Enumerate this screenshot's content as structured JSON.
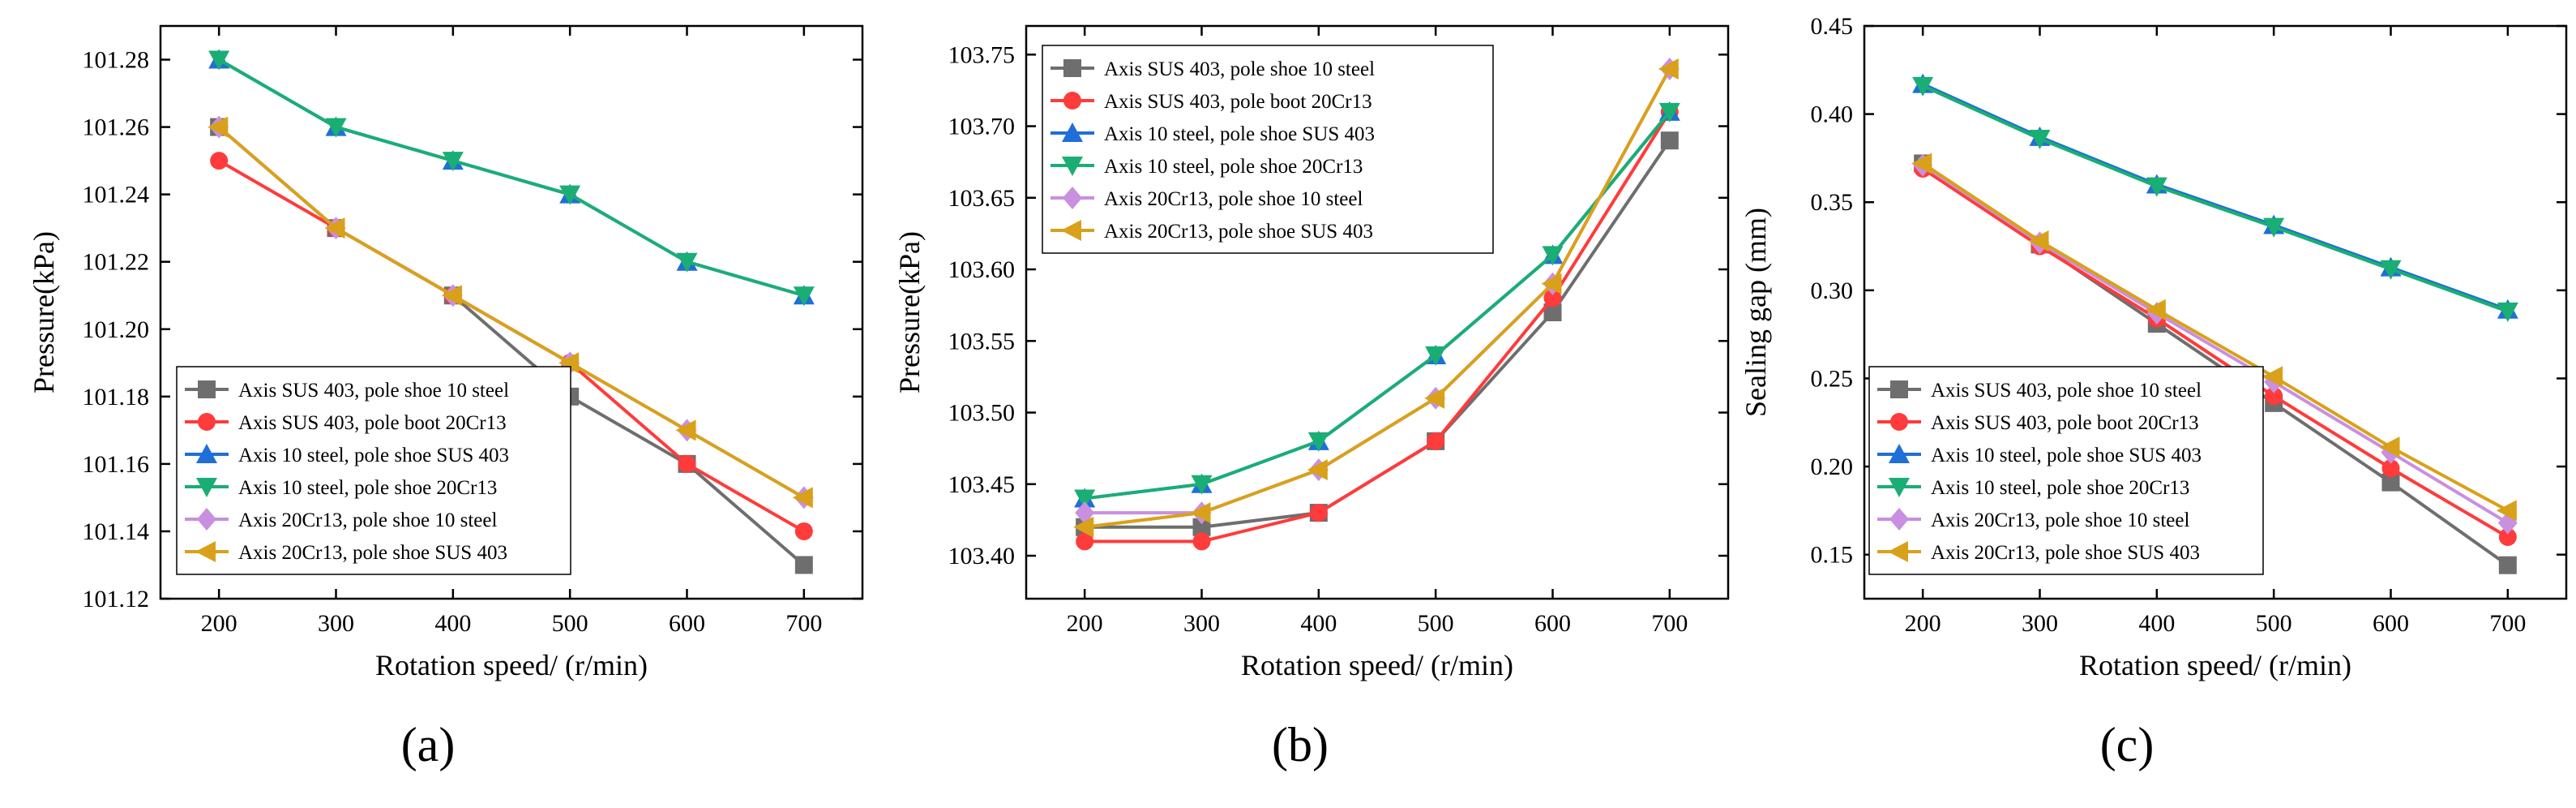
{
  "figure": {
    "panel_labels": [
      "(a)",
      "(b)",
      "(c)"
    ]
  },
  "chart_data": [
    {
      "type": "line",
      "panel": "(a)",
      "xlabel": "Rotation speed/ (r/min)",
      "ylabel": "Pressure(kPa)",
      "x": [
        200,
        300,
        400,
        500,
        600,
        700
      ],
      "xticks": [
        "200",
        "300",
        "400",
        "500",
        "600",
        "700"
      ],
      "xlim": [
        150,
        750
      ],
      "ylim": [
        101.12,
        101.29
      ],
      "yticks": [
        "101.12",
        "101.14",
        "101.16",
        "101.18",
        "101.20",
        "101.22",
        "101.24",
        "101.26",
        "101.28"
      ],
      "ytick_values": [
        101.12,
        101.14,
        101.16,
        101.18,
        101.2,
        101.22,
        101.24,
        101.26,
        101.28
      ],
      "grid": false,
      "legend_position": "bottom-left",
      "series": [
        {
          "name": "Axis SUS 403, pole shoe 10 steel",
          "color": "#6e6e6e",
          "marker": "square",
          "values": [
            101.26,
            101.23,
            101.21,
            101.18,
            101.16,
            101.13
          ]
        },
        {
          "name": "Axis SUS 403, pole boot 20Cr13",
          "color": "#ff3b3b",
          "marker": "circle",
          "values": [
            101.25,
            101.23,
            101.21,
            101.19,
            101.16,
            101.14
          ]
        },
        {
          "name": "Axis 10 steel, pole shoe SUS 403",
          "color": "#1f6fd6",
          "marker": "triangle-up",
          "values": [
            101.28,
            101.26,
            101.25,
            101.24,
            101.22,
            101.21
          ]
        },
        {
          "name": "Axis 10 steel, pole shoe 20Cr13",
          "color": "#1aae74",
          "marker": "triangle-down",
          "values": [
            101.28,
            101.26,
            101.25,
            101.24,
            101.22,
            101.21
          ]
        },
        {
          "name": "Axis 20Cr13, pole shoe 10 steel",
          "color": "#c98fe0",
          "marker": "diamond",
          "values": [
            101.26,
            101.23,
            101.21,
            101.19,
            101.17,
            101.15
          ]
        },
        {
          "name": "Axis 20Cr13, pole shoe SUS 403",
          "color": "#d9a11a",
          "marker": "triangle-left",
          "values": [
            101.26,
            101.23,
            101.21,
            101.19,
            101.17,
            101.15
          ]
        }
      ]
    },
    {
      "type": "line",
      "panel": "(b)",
      "xlabel": "Rotation speed/ (r/min)",
      "ylabel": "Pressure(kPa)",
      "x": [
        200,
        300,
        400,
        500,
        600,
        700
      ],
      "xticks": [
        "200",
        "300",
        "400",
        "500",
        "600",
        "700"
      ],
      "xlim": [
        150,
        750
      ],
      "ylim": [
        103.37,
        103.77
      ],
      "yticks": [
        "103.40",
        "103.45",
        "103.50",
        "103.55",
        "103.60",
        "103.65",
        "103.70",
        "103.75"
      ],
      "ytick_values": [
        103.4,
        103.45,
        103.5,
        103.55,
        103.6,
        103.65,
        103.7,
        103.75
      ],
      "grid": false,
      "legend_position": "top-left",
      "series": [
        {
          "name": "Axis SUS 403, pole shoe 10 steel",
          "color": "#6e6e6e",
          "marker": "square",
          "values": [
            103.42,
            103.42,
            103.43,
            103.48,
            103.57,
            103.69
          ]
        },
        {
          "name": "Axis SUS 403, pole boot 20Cr13",
          "color": "#ff3b3b",
          "marker": "circle",
          "values": [
            103.41,
            103.41,
            103.43,
            103.48,
            103.58,
            103.71
          ]
        },
        {
          "name": "Axis 10 steel, pole shoe SUS 403",
          "color": "#1f6fd6",
          "marker": "triangle-up",
          "values": [
            103.44,
            103.45,
            103.48,
            103.54,
            103.61,
            103.71
          ]
        },
        {
          "name": "Axis 10 steel, pole shoe 20Cr13",
          "color": "#1aae74",
          "marker": "triangle-down",
          "values": [
            103.44,
            103.45,
            103.48,
            103.54,
            103.61,
            103.71
          ]
        },
        {
          "name": "Axis 20Cr13, pole shoe 10 steel",
          "color": "#c98fe0",
          "marker": "diamond",
          "values": [
            103.43,
            103.43,
            103.46,
            103.51,
            103.59,
            103.74
          ]
        },
        {
          "name": "Axis 20Cr13, pole shoe SUS 403",
          "color": "#d9a11a",
          "marker": "triangle-left",
          "values": [
            103.42,
            103.43,
            103.46,
            103.51,
            103.59,
            103.74
          ]
        }
      ]
    },
    {
      "type": "line",
      "panel": "(c)",
      "xlabel": "Rotation speed/ (r/min)",
      "ylabel": "Sealing gap (mm)",
      "x": [
        200,
        300,
        400,
        500,
        600,
        700
      ],
      "xticks": [
        "200",
        "300",
        "400",
        "500",
        "600",
        "700"
      ],
      "xlim": [
        150,
        750
      ],
      "ylim": [
        0.125,
        0.45
      ],
      "yticks": [
        "0.15",
        "0.20",
        "0.25",
        "0.30",
        "0.35",
        "0.40",
        "0.45"
      ],
      "ytick_values": [
        0.15,
        0.2,
        0.25,
        0.3,
        0.35,
        0.4,
        0.45
      ],
      "grid": false,
      "legend_position": "bottom-left",
      "series": [
        {
          "name": "Axis SUS 403, pole shoe 10 steel",
          "color": "#6e6e6e",
          "marker": "square",
          "values": [
            0.372,
            0.326,
            0.281,
            0.236,
            0.191,
            0.144
          ]
        },
        {
          "name": "Axis SUS 403, pole boot 20Cr13",
          "color": "#ff3b3b",
          "marker": "circle",
          "values": [
            0.369,
            0.325,
            0.284,
            0.24,
            0.199,
            0.16
          ]
        },
        {
          "name": "Axis 10 steel, pole shoe SUS 403",
          "color": "#1f6fd6",
          "marker": "triangle-up",
          "values": [
            0.417,
            0.387,
            0.36,
            0.337,
            0.313,
            0.289
          ]
        },
        {
          "name": "Axis 10 steel, pole shoe 20Cr13",
          "color": "#1aae74",
          "marker": "triangle-down",
          "values": [
            0.416,
            0.386,
            0.359,
            0.336,
            0.312,
            0.288
          ]
        },
        {
          "name": "Axis 20Cr13, pole shoe 10 steel",
          "color": "#c98fe0",
          "marker": "diamond",
          "values": [
            0.371,
            0.327,
            0.287,
            0.248,
            0.208,
            0.168
          ]
        },
        {
          "name": "Axis 20Cr13, pole shoe SUS 403",
          "color": "#d9a11a",
          "marker": "triangle-left",
          "values": [
            0.372,
            0.328,
            0.289,
            0.251,
            0.211,
            0.175
          ]
        }
      ]
    }
  ]
}
